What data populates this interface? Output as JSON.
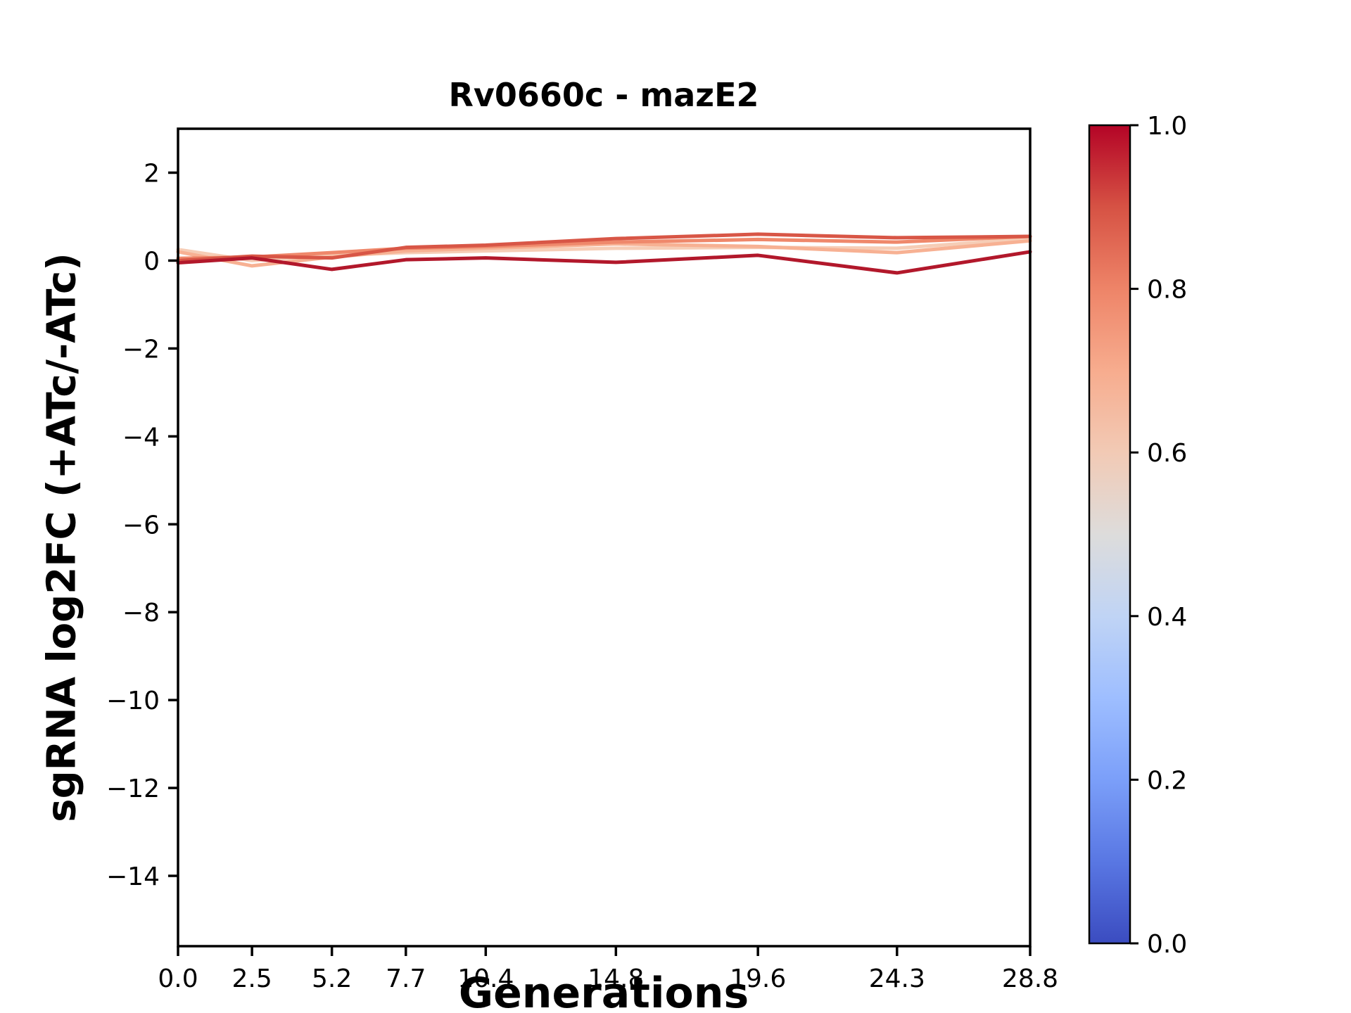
{
  "chart_data": {
    "type": "line",
    "title": "Rv0660c - mazE2",
    "xlabel": "Generations",
    "ylabel": "sgRNA log2FC (+ATc/-ATc)",
    "x": [
      0.0,
      2.5,
      5.2,
      7.7,
      10.4,
      14.8,
      19.6,
      24.3,
      28.8
    ],
    "xtick_labels": [
      "0.0",
      "2.5",
      "5.2",
      "7.7",
      "10.4",
      "14.8",
      "19.6",
      "24.3",
      "28.8"
    ],
    "ytick_values": [
      2,
      0,
      -2,
      -4,
      -6,
      -8,
      -10,
      -12,
      -14
    ],
    "ytick_labels": [
      "2",
      "0",
      "−2",
      "−4",
      "−6",
      "−8",
      "−10",
      "−12",
      "−14"
    ],
    "xlim": [
      0,
      28.8
    ],
    "ylim": [
      -15.6,
      3.0
    ],
    "grid": false,
    "legend": "none (colorbar encodes series color value)",
    "series": [
      {
        "name": "series-1",
        "color_value": 0.58,
        "color": "#f6cdb6",
        "values": [
          0.25,
          0.0,
          0.12,
          0.18,
          0.22,
          0.28,
          0.3,
          0.28,
          0.5
        ]
      },
      {
        "name": "series-2",
        "color_value": 0.65,
        "color": "#f7b193",
        "values": [
          0.2,
          -0.12,
          0.08,
          0.22,
          0.28,
          0.38,
          0.32,
          0.18,
          0.45
        ]
      },
      {
        "name": "series-3",
        "color_value": 0.75,
        "color": "#ef886b",
        "values": [
          0.05,
          0.08,
          0.18,
          0.28,
          0.32,
          0.42,
          0.48,
          0.42,
          0.55
        ]
      },
      {
        "name": "series-4",
        "color_value": 0.85,
        "color": "#d85646",
        "values": [
          0.0,
          0.1,
          0.06,
          0.3,
          0.35,
          0.5,
          0.6,
          0.52,
          0.55
        ]
      },
      {
        "name": "series-5",
        "color_value": 1.0,
        "color": "#b2182b",
        "values": [
          -0.05,
          0.06,
          -0.2,
          0.02,
          0.06,
          -0.04,
          0.12,
          -0.28,
          0.2
        ]
      }
    ],
    "colorbar": {
      "tick_labels": [
        "1.0",
        "0.8",
        "0.6",
        "0.4",
        "0.2",
        "0.0"
      ],
      "tick_values": [
        1.0,
        0.8,
        0.6,
        0.4,
        0.2,
        0.0
      ],
      "range": [
        0.0,
        1.0
      ],
      "colormap": "coolwarm",
      "gradient_bottom_to_top": [
        "#3b4cc0",
        "#5977e3",
        "#7b9ff9",
        "#9ebeff",
        "#c0d4f5",
        "#dddcdb",
        "#f2cab5",
        "#f7ac8e",
        "#ee8468",
        "#d65244",
        "#b40426"
      ]
    }
  }
}
